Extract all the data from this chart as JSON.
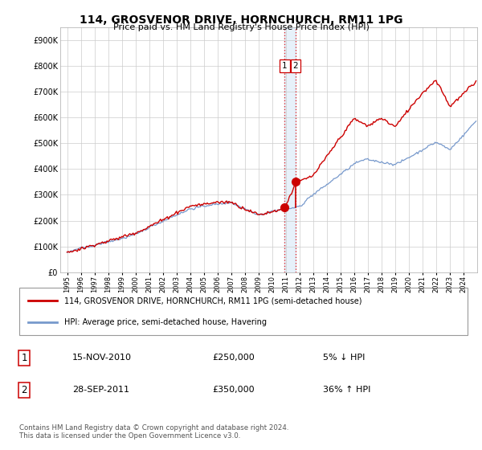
{
  "title": "114, GROSVENOR DRIVE, HORNCHURCH, RM11 1PG",
  "subtitle": "Price paid vs. HM Land Registry's House Price Index (HPI)",
  "ylabel_ticks": [
    "£0",
    "£100K",
    "£200K",
    "£300K",
    "£400K",
    "£500K",
    "£600K",
    "£700K",
    "£800K",
    "£900K"
  ],
  "ytick_values": [
    0,
    100000,
    200000,
    300000,
    400000,
    500000,
    600000,
    700000,
    800000,
    900000
  ],
  "ylim": [
    0,
    950000
  ],
  "sale1_date": 2010.88,
  "sale1_price": 250000,
  "sale2_date": 2011.74,
  "sale2_price": 350000,
  "vline_color": "#dd0000",
  "red_line_color": "#cc0000",
  "blue_line_color": "#7799cc",
  "legend1_text": "114, GROSVENOR DRIVE, HORNCHURCH, RM11 1PG (semi-detached house)",
  "legend2_text": "HPI: Average price, semi-detached house, Havering",
  "footer": "Contains HM Land Registry data © Crown copyright and database right 2024.\nThis data is licensed under the Open Government Licence v3.0.",
  "table_rows": [
    {
      "num": "1",
      "date": "15-NOV-2010",
      "price": "£250,000",
      "hpi": "5% ↓ HPI"
    },
    {
      "num": "2",
      "date": "28-SEP-2011",
      "price": "£350,000",
      "hpi": "36% ↑ HPI"
    }
  ],
  "xlim_left": 1994.5,
  "xlim_right": 2025.0,
  "xticks": [
    1995,
    1996,
    1997,
    1998,
    1999,
    2000,
    2001,
    2002,
    2003,
    2004,
    2005,
    2006,
    2007,
    2008,
    2009,
    2010,
    2011,
    2012,
    2013,
    2014,
    2015,
    2016,
    2017,
    2018,
    2019,
    2020,
    2021,
    2022,
    2023,
    2024
  ]
}
